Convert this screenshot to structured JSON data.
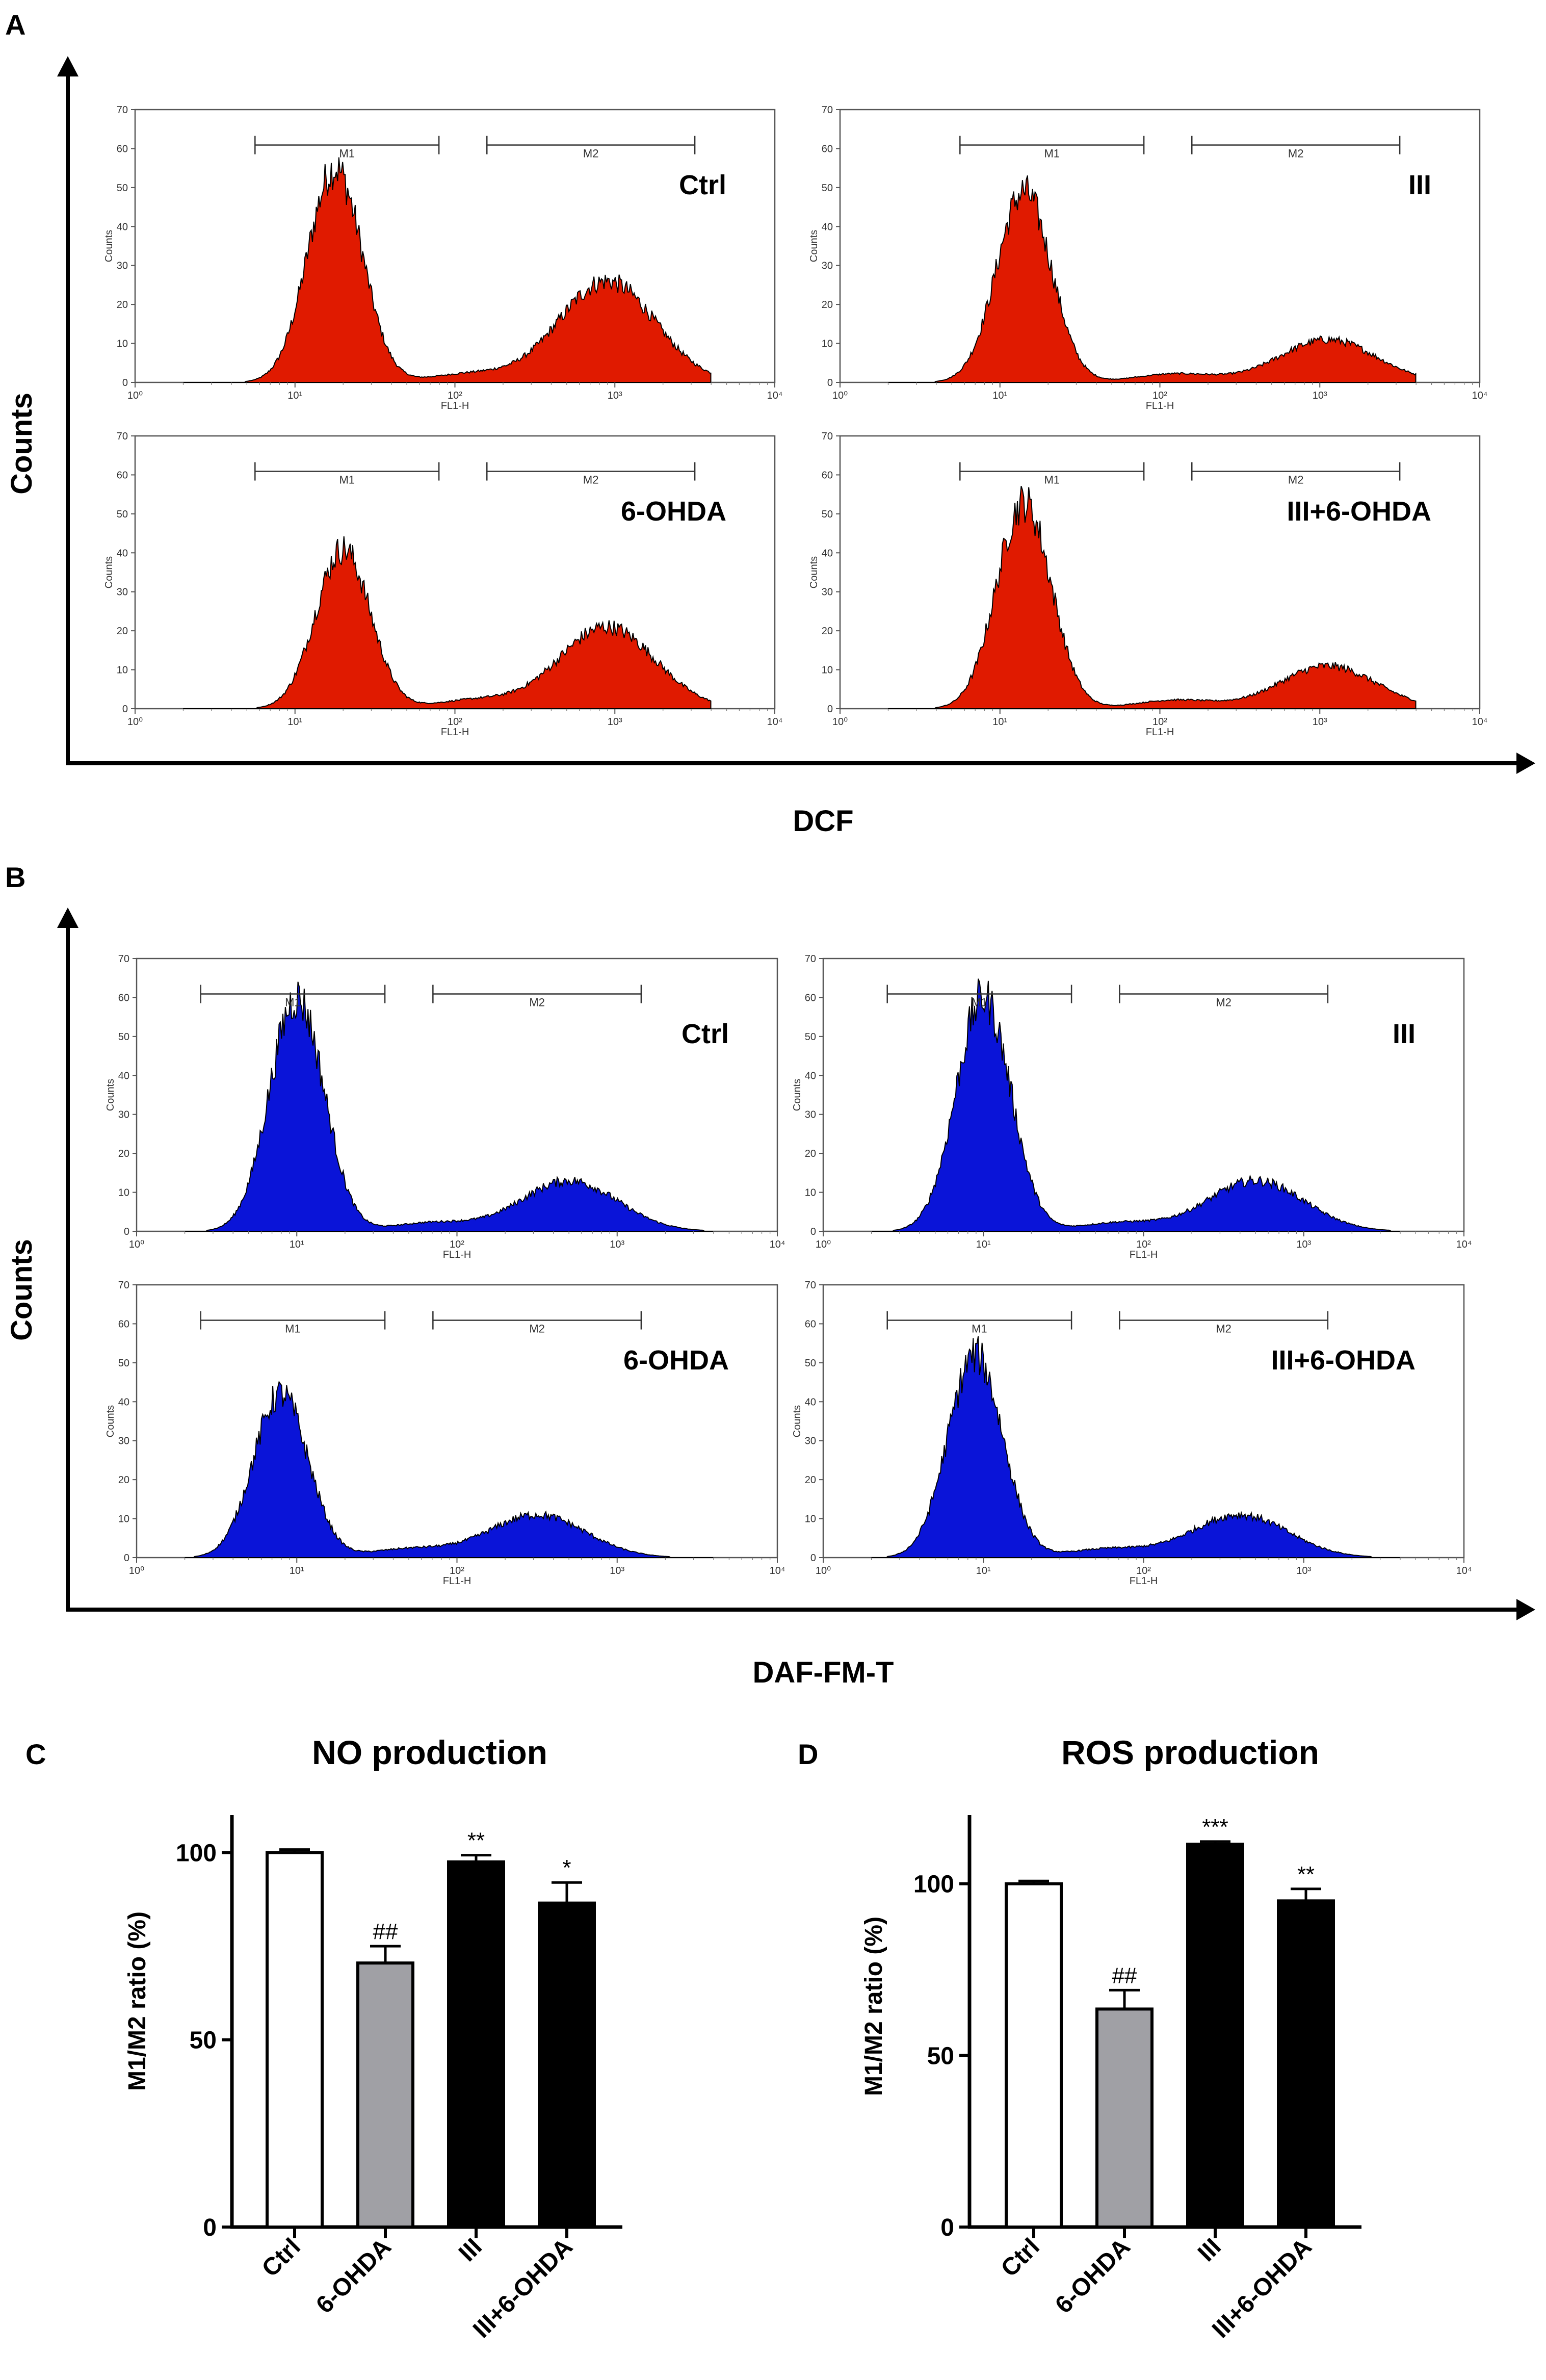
{
  "chart_data": [
    {
      "id": "A",
      "type": "area",
      "panel_label": "A",
      "ylabel": "Counts",
      "xlabel": "DCF",
      "fill_color": "#e01a00",
      "subplots": [
        {
          "condition": "Ctrl",
          "m1_peak": 55,
          "m2_peak": 26,
          "m1_center_log": 1.25,
          "m2_center_log": 2.95
        },
        {
          "condition": "III",
          "m1_peak": 49,
          "m2_peak": 11,
          "m1_center_log": 1.15,
          "m2_center_log": 3.05
        },
        {
          "condition": "6-OHDA",
          "m1_peak": 41,
          "m2_peak": 21,
          "m1_center_log": 1.3,
          "m2_center_log": 2.95
        },
        {
          "condition": "III+6-OHDA",
          "m1_peak": 53,
          "m2_peak": 11,
          "m1_center_log": 1.15,
          "m2_center_log": 3.05
        }
      ],
      "gate_range_log": {
        "M1": [
          0.75,
          1.9
        ],
        "M2": [
          2.2,
          3.5
        ]
      },
      "subplot_ylabel": "Counts",
      "subplot_xlabel": "FL1-H",
      "subplot_yticks": [
        "0",
        "10",
        "20",
        "30",
        "40",
        "50",
        "60",
        "70"
      ],
      "subplot_xticks": [
        "10⁰",
        "10¹",
        "10²",
        "10³",
        "10⁴"
      ],
      "gate_labels": [
        "M1",
        "M2"
      ]
    },
    {
      "id": "B",
      "type": "area",
      "panel_label": "B",
      "ylabel": "Counts",
      "xlabel": "DAF-FM-T",
      "fill_color": "#0a14d8",
      "subplots": [
        {
          "condition": "Ctrl",
          "m1_peak": 60,
          "m2_peak": 13,
          "m1_center_log": 1.0,
          "m2_center_log": 2.7
        },
        {
          "condition": "III",
          "m1_peak": 60,
          "m2_peak": 13,
          "m1_center_log": 1.0,
          "m2_center_log": 2.7
        },
        {
          "condition": "6-OHDA",
          "m1_peak": 42,
          "m2_peak": 11,
          "m1_center_log": 0.9,
          "m2_center_log": 2.5
        },
        {
          "condition": "III+6-OHDA",
          "m1_peak": 52,
          "m2_peak": 11,
          "m1_center_log": 0.95,
          "m2_center_log": 2.6
        }
      ],
      "gate_range_log": {
        "M1": [
          0.4,
          1.55
        ],
        "M2": [
          1.85,
          3.15
        ]
      },
      "subplot_ylabel": "Counts",
      "subplot_xlabel": "FL1-H",
      "subplot_yticks": [
        "0",
        "10",
        "20",
        "30",
        "40",
        "50",
        "60",
        "70"
      ],
      "subplot_xticks": [
        "10⁰",
        "10¹",
        "10²",
        "10³",
        "10⁴"
      ],
      "gate_labels": [
        "M1",
        "M2"
      ]
    },
    {
      "id": "C",
      "type": "bar",
      "panel_label": "C",
      "title": "NO production",
      "ylabel": "M1/M2 ratio (%)",
      "categories": [
        "Ctrl",
        "6-OHDA",
        "III",
        "III+6-OHDA"
      ],
      "values": [
        100,
        70.5,
        97.5,
        86.5
      ],
      "errors": [
        0.8,
        4.5,
        1.8,
        5.5
      ],
      "significance": [
        "",
        "##",
        "**",
        "*"
      ],
      "bar_colors": [
        "#ffffff",
        "#a0a0a5",
        "#000000",
        "#000000"
      ],
      "ylim": [
        0,
        110
      ],
      "yticks": [
        "0",
        "50",
        "100"
      ]
    },
    {
      "id": "D",
      "type": "bar",
      "panel_label": "D",
      "title": "ROS production",
      "ylabel": "M1/M2 ratio (%)",
      "categories": [
        "Ctrl",
        "6-OHDA",
        "III",
        "III+6-OHDA"
      ],
      "values": [
        100,
        63.5,
        111.5,
        95
      ],
      "errors": [
        0.8,
        5.5,
        0.8,
        3.5
      ],
      "significance": [
        "",
        "##",
        "***",
        "**"
      ],
      "bar_colors": [
        "#ffffff",
        "#a0a0a5",
        "#000000",
        "#000000"
      ],
      "ylim": [
        0,
        120
      ],
      "yticks": [
        "0",
        "50",
        "100"
      ]
    }
  ]
}
